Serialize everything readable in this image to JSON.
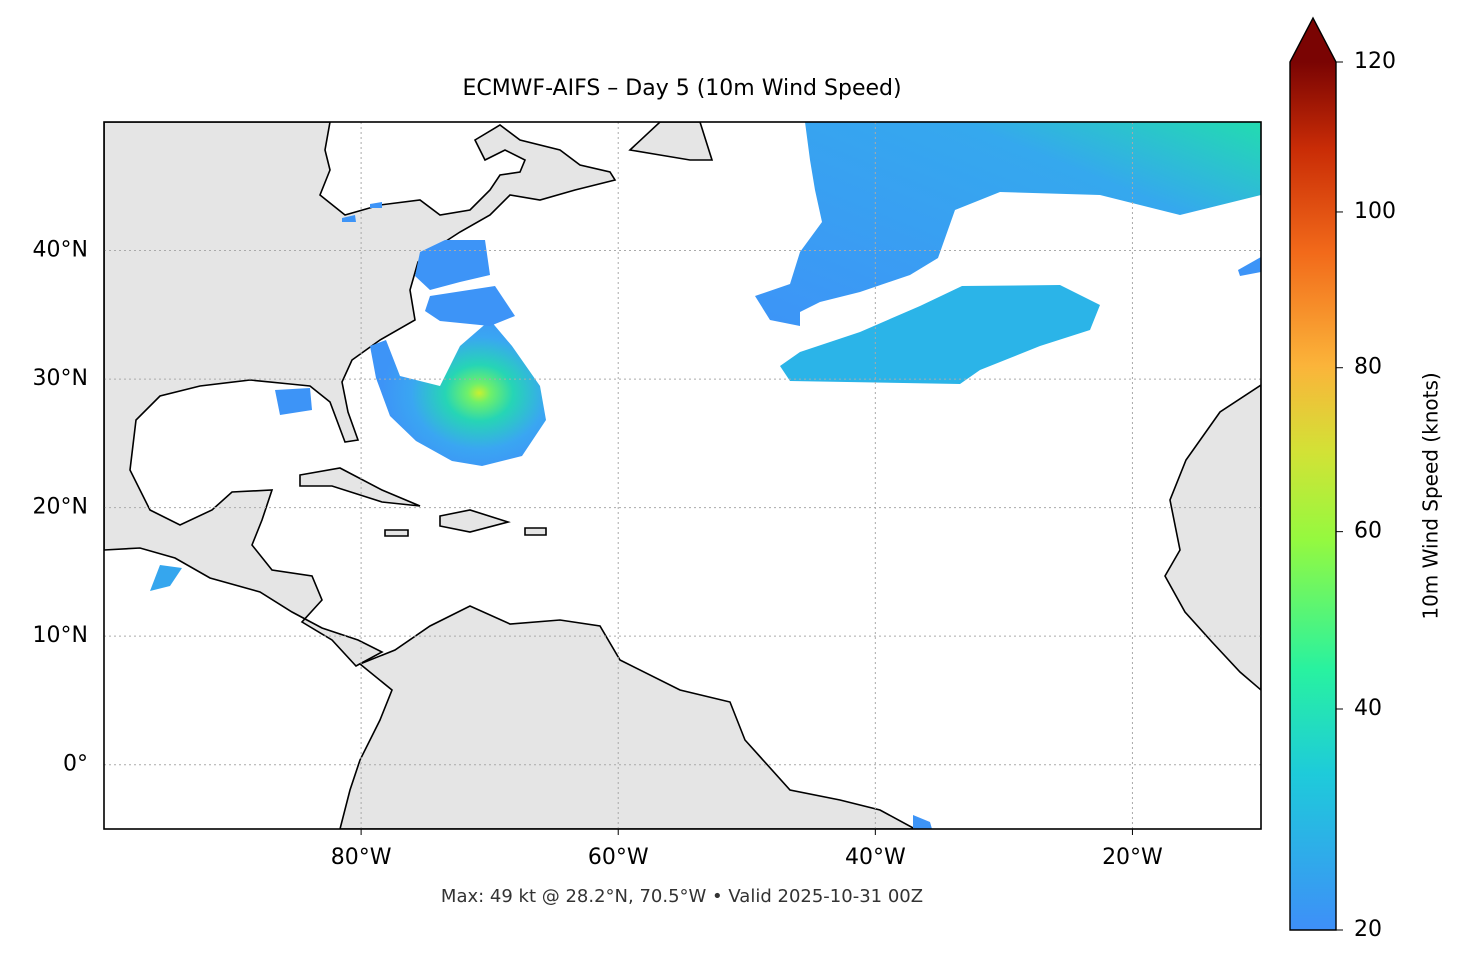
{
  "chart_data": {
    "type": "map",
    "title": "ECMWF-AIFS – Day 5 (10m Wind Speed)",
    "subtitle": "Max: 49 kt @ 28.2°N, 70.5°W • Valid 2025-10-31 00Z",
    "xlim": [
      -100,
      -10
    ],
    "ylim": [
      -5,
      50
    ],
    "xticks": [
      {
        "value": -80,
        "label": "80°W"
      },
      {
        "value": -60,
        "label": "60°W"
      },
      {
        "value": -40,
        "label": "40°W"
      },
      {
        "value": -20,
        "label": "20°W"
      }
    ],
    "yticks": [
      {
        "value": 0,
        "label": "0°"
      },
      {
        "value": 10,
        "label": "10°N"
      },
      {
        "value": 20,
        "label": "20°N"
      },
      {
        "value": 30,
        "label": "30°N"
      },
      {
        "value": 40,
        "label": "40°N"
      }
    ],
    "grid": true,
    "colorbar_label": "10m Wind Speed (knots)",
    "clim": [
      20,
      120
    ],
    "colorbar_ticks": [
      20,
      40,
      60,
      80,
      100,
      120
    ],
    "colorbar_gamma": 0.85
  }
}
